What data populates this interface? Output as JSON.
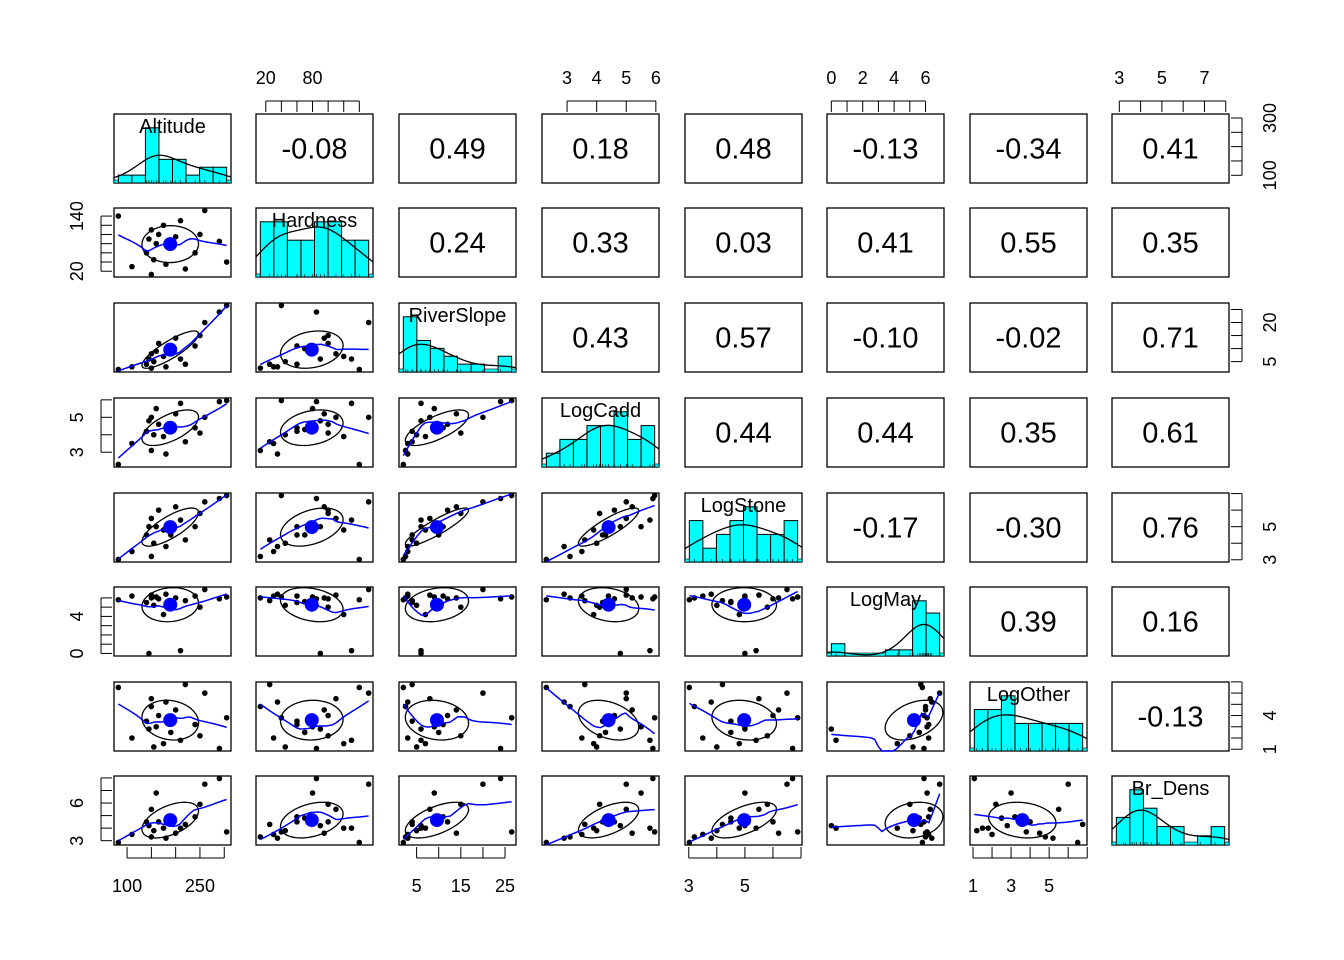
{
  "chart_data": {
    "type": "scatter",
    "title": "",
    "description_kind": "scatterplot matrix",
    "colors": {
      "hist_fill": "#00FFFF",
      "smoother": "#0000FF",
      "mean_point": "#0000FF",
      "points": "#000000"
    },
    "variables": [
      {
        "name": "Altitude",
        "values": [
          82,
          110,
          140,
          145,
          150,
          150,
          155,
          160,
          165,
          175,
          180,
          190,
          200,
          210,
          220,
          240,
          250,
          260,
          290,
          305
        ],
        "ticks": [
          100,
          150,
          200,
          250,
          300
        ],
        "x_labels": [
          "100",
          "250"
        ],
        "y_labels": [
          "100",
          "300"
        ]
      },
      {
        "name": "Hardness",
        "values": [
          140,
          30,
          60,
          90,
          13,
          110,
          45,
          80,
          100,
          120,
          35,
          70,
          95,
          130,
          25,
          60,
          100,
          152,
          85,
          40
        ],
        "ticks": [
          20,
          40,
          60,
          80,
          100,
          120,
          140
        ],
        "x_labels": [
          "20",
          "80"
        ],
        "y_labels": [
          "20",
          "140"
        ]
      },
      {
        "name": "RiverSlope",
        "values": [
          2,
          3,
          4,
          6,
          2.5,
          8,
          5,
          9,
          12,
          7,
          3,
          10,
          14,
          6,
          4,
          11,
          15,
          20,
          24,
          26.5
        ],
        "ticks": [
          5,
          10,
          15,
          20,
          25
        ],
        "x_labels": [
          "5",
          "15",
          "25"
        ],
        "y_labels": [
          "5",
          "20"
        ]
      },
      {
        "name": "LogCadd",
        "values": [
          2.3,
          3.5,
          4.2,
          4.8,
          3.1,
          5.0,
          4.0,
          5.5,
          4.6,
          3.9,
          2.9,
          4.3,
          5.2,
          5.8,
          3.6,
          4.4,
          4.1,
          5.0,
          5.9,
          5.96
        ],
        "ticks": [
          3,
          4,
          5,
          6
        ],
        "x_labels": [
          "3",
          "4",
          "5",
          "6"
        ],
        "y_labels": [
          "3",
          "5"
        ]
      },
      {
        "name": "LogStone",
        "values": [
          3.02,
          3.5,
          4.5,
          5.0,
          3.2,
          5.5,
          4.0,
          5.0,
          6.0,
          4.8,
          3.8,
          4.5,
          6.2,
          5.4,
          4.2,
          5.0,
          5.8,
          6.5,
          6.7,
          6.88
        ],
        "ticks": [
          3,
          4,
          5,
          6,
          7
        ],
        "x_labels": [
          "3",
          "5"
        ],
        "y_labels": [
          "3",
          "5"
        ]
      },
      {
        "name": "LogMay",
        "values": [
          5.8,
          6.2,
          5.5,
          0,
          6.0,
          6.3,
          5.2,
          6.1,
          5.9,
          4.2,
          6.4,
          5.6,
          6.0,
          0.3,
          5.7,
          6.2,
          5.0,
          6.9,
          5.9,
          6.1
        ],
        "ticks": [
          0,
          1,
          2,
          3,
          4,
          5,
          6
        ],
        "x_labels": [
          "0",
          "2",
          "4",
          "6"
        ],
        "y_labels": [
          "0",
          "4"
        ]
      },
      {
        "name": "LogOther",
        "values": [
          6.5,
          2.0,
          3.5,
          2.8,
          4.8,
          5.5,
          1.2,
          3.0,
          4.0,
          1.5,
          5.2,
          2.5,
          4.5,
          1.8,
          6.76,
          3.2,
          2.2,
          6.0,
          1.07,
          3.8
        ],
        "ticks": [
          1,
          2,
          3,
          4,
          5,
          6,
          7
        ],
        "x_labels": [
          "1",
          "3",
          "5"
        ],
        "y_labels": [
          "1",
          "4"
        ]
      },
      {
        "name": "Br_Dens",
        "values": [
          2.86,
          3.5,
          4.5,
          4.2,
          3.3,
          5.5,
          3.8,
          6.8,
          4.5,
          4.0,
          3.2,
          4.8,
          3.6,
          4.0,
          4.3,
          4.9,
          5.9,
          7.5,
          7.95,
          3.7
        ],
        "ticks": [
          3,
          4,
          5,
          6,
          7,
          8
        ],
        "x_labels": [
          "3",
          "5",
          "7"
        ],
        "y_labels": [
          "3",
          "6"
        ]
      }
    ],
    "correlations": [
      [
        "-0.08",
        "0.49",
        "0.18",
        "0.48",
        "-0.13",
        "-0.34",
        "0.41"
      ],
      [
        "0.24",
        "0.33",
        "0.03",
        "0.41",
        "0.55",
        "0.35"
      ],
      [
        "0.43",
        "0.57",
        "-0.10",
        "-0.02",
        "0.71"
      ],
      [
        "0.44",
        "0.44",
        "0.35",
        "0.61"
      ],
      [
        "-0.17",
        "-0.30",
        "0.76"
      ],
      [
        "0.39",
        "0.16"
      ],
      [
        "-0.13"
      ]
    ]
  }
}
